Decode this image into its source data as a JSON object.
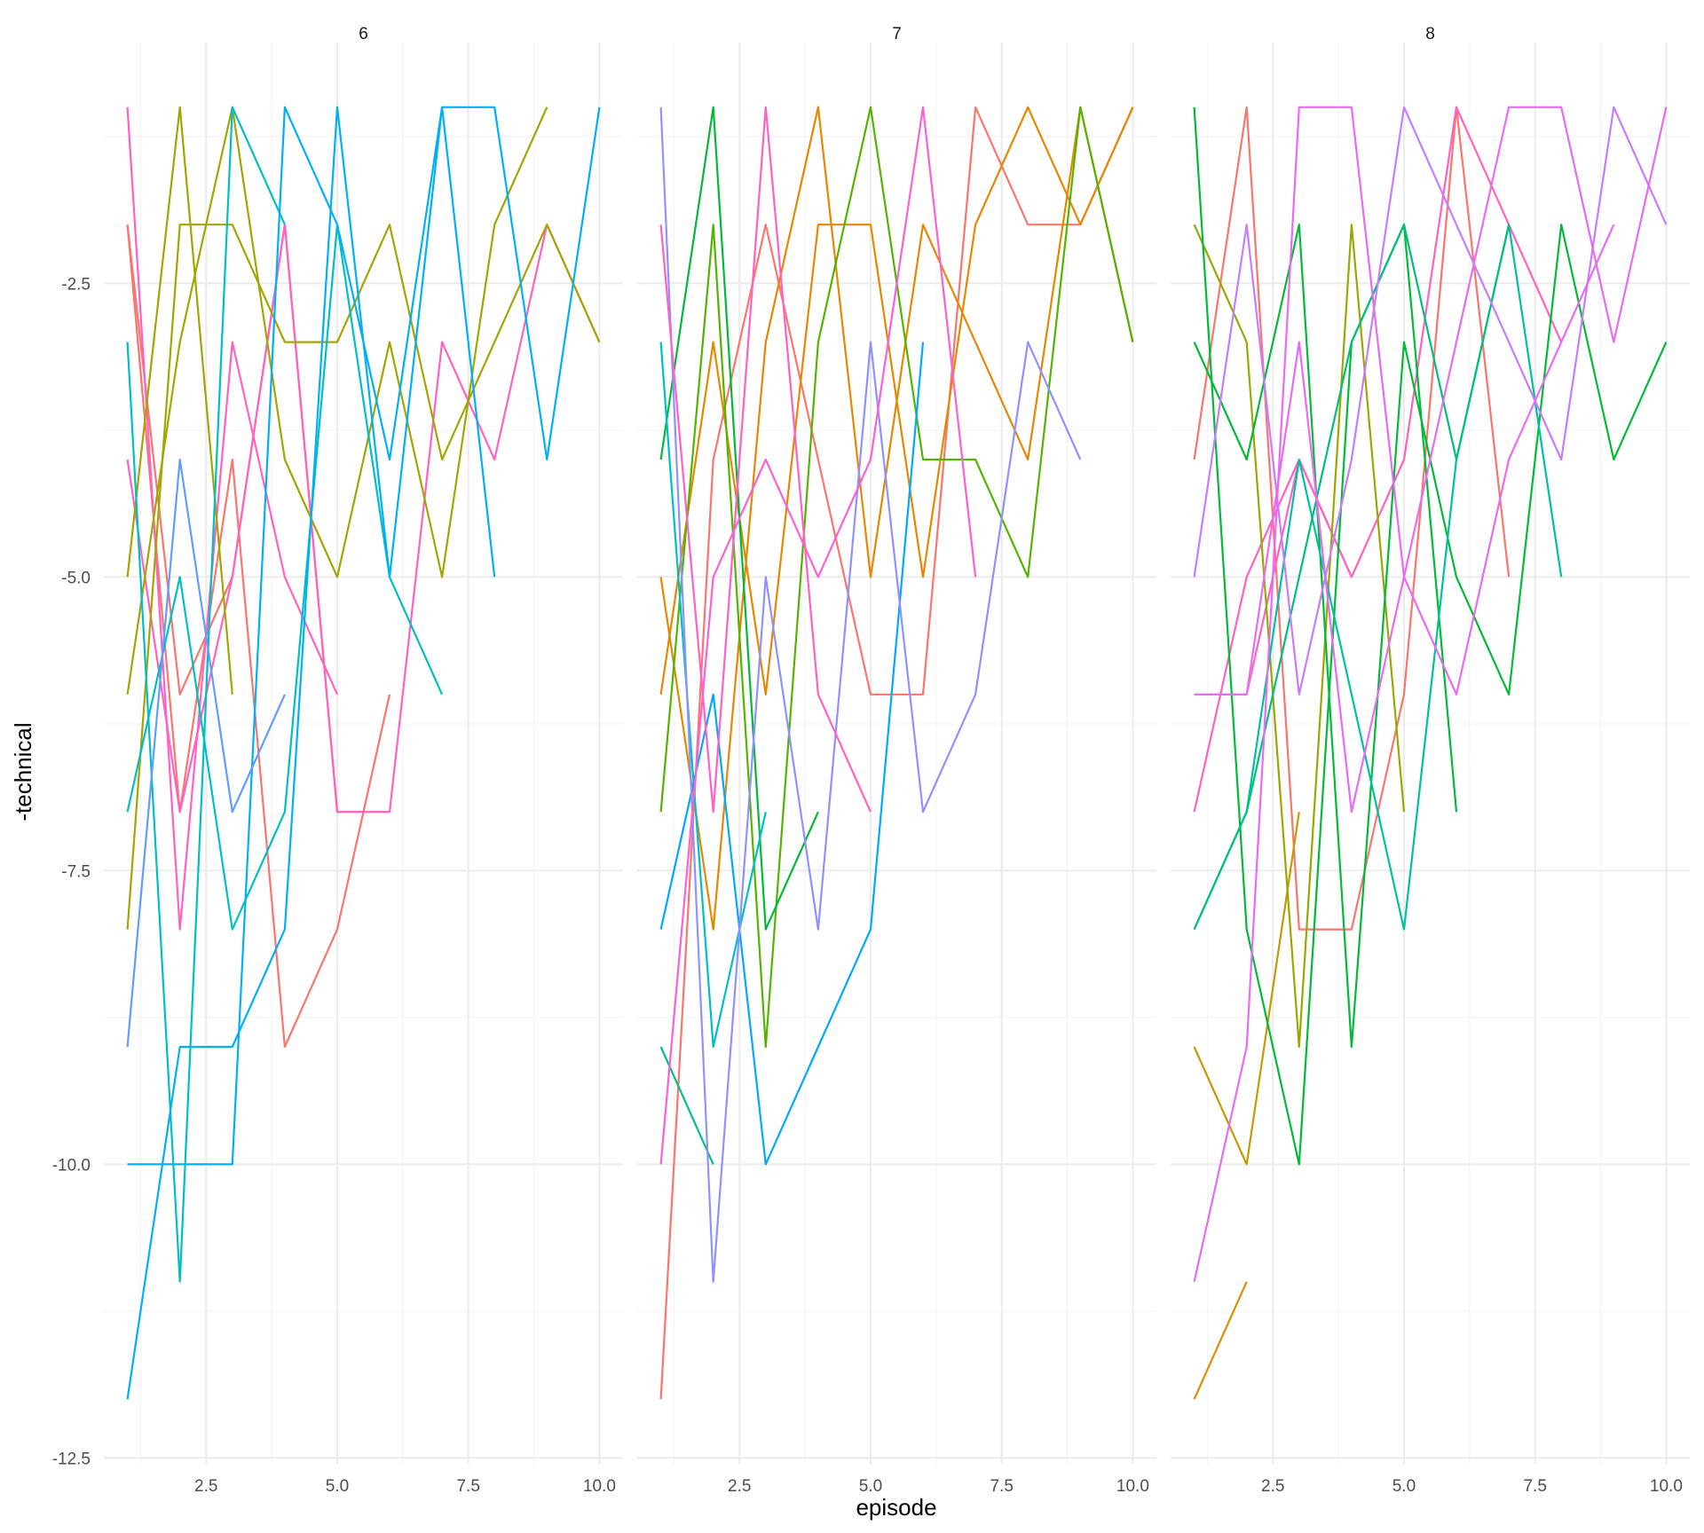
{
  "chart_data": {
    "type": "line",
    "xlabel": "episode",
    "ylabel": "-technical",
    "xlim": [
      1,
      10
    ],
    "ylim": [
      -12,
      -1
    ],
    "x_ticks": [
      2.5,
      5.0,
      7.5,
      10.0
    ],
    "x_tick_labels": [
      "2.5",
      "5.0",
      "7.5",
      "10.0"
    ],
    "y_ticks": [
      -2.5,
      -5.0,
      -7.5,
      -10.0,
      -12.5
    ],
    "y_tick_labels": [
      "-2.5",
      "-5.0",
      "-7.5",
      "-10.0",
      "-12.5"
    ],
    "grid": true,
    "legend": "none",
    "panels": [
      {
        "label": "6",
        "series": [
          {
            "color": "#F8766D",
            "x": [
              1,
              2,
              3,
              4,
              5,
              6
            ],
            "y": [
              -2,
              -7,
              -4,
              -9,
              -8,
              -6
            ]
          },
          {
            "color": "#F8766D",
            "x": [
              1,
              2,
              3,
              4,
              5,
              6
            ],
            "y": [
              -2,
              -6,
              -5,
              -2,
              -7,
              -7
            ]
          },
          {
            "color": "#FF61C3",
            "x": [
              1,
              2,
              3,
              4,
              5
            ],
            "y": [
              -1,
              -8,
              -3,
              -5,
              -6
            ]
          },
          {
            "color": "#FF61C3",
            "x": [
              1,
              2,
              3,
              4,
              5,
              6,
              7,
              8,
              9,
              10
            ],
            "y": [
              -4,
              -7,
              -5,
              -2,
              -7,
              -7,
              -3,
              -4,
              -2,
              -3
            ]
          },
          {
            "color": "#A3A500",
            "x": [
              1,
              2,
              3
            ],
            "y": [
              -5,
              -1,
              -6
            ]
          },
          {
            "color": "#A3A500",
            "x": [
              1,
              2,
              3,
              4,
              5,
              6,
              7,
              8,
              9,
              10
            ],
            "y": [
              -8,
              -2,
              -2,
              -3,
              -3,
              -2,
              -4,
              -3,
              -2,
              -3
            ]
          },
          {
            "color": "#A3A500",
            "x": [
              1,
              2,
              3,
              4,
              5,
              6,
              7,
              8,
              9
            ],
            "y": [
              -6,
              -3,
              -1,
              -4,
              -5,
              -3,
              -5,
              -2,
              -1
            ]
          },
          {
            "color": "#00BFC4",
            "x": [
              1,
              2,
              3,
              4
            ],
            "y": [
              -3,
              -11,
              -1,
              -2
            ]
          },
          {
            "color": "#00BFC4",
            "x": [
              1,
              2,
              3,
              4,
              5,
              6,
              7
            ],
            "y": [
              -7,
              -5,
              -8,
              -7,
              -2,
              -5,
              -6
            ]
          },
          {
            "color": "#00B0F6",
            "x": [
              1,
              2,
              3,
              4,
              5,
              6,
              7,
              8
            ],
            "y": [
              -12,
              -9,
              -9,
              -8,
              -1,
              -5,
              -1,
              -5
            ]
          },
          {
            "color": "#00B0F6",
            "x": [
              1,
              2,
              3,
              4,
              5,
              6,
              7,
              8,
              9,
              10
            ],
            "y": [
              -10,
              -10,
              -10,
              -1,
              -2,
              -4,
              -1,
              -1,
              -4,
              -1
            ]
          },
          {
            "color": "#619CFF",
            "x": [
              1,
              2,
              3,
              4
            ],
            "y": [
              -9,
              -4,
              -7,
              -6
            ]
          }
        ]
      },
      {
        "label": "7",
        "series": [
          {
            "color": "#F8766D",
            "x": [
              1,
              2,
              3,
              4,
              5,
              6,
              7,
              8,
              9,
              10
            ],
            "y": [
              -12,
              -4,
              -2,
              -4,
              -6,
              -6,
              -1,
              -2,
              -2,
              -1
            ]
          },
          {
            "color": "#E58700",
            "x": [
              1,
              2,
              3,
              4,
              5,
              6,
              7,
              8,
              9,
              10
            ],
            "y": [
              -5,
              -8,
              -3,
              -1,
              -5,
              -2,
              -3,
              -4,
              -1,
              -3
            ]
          },
          {
            "color": "#E58700",
            "x": [
              1,
              2,
              3,
              4,
              5,
              6,
              7,
              8,
              9,
              10
            ],
            "y": [
              -6,
              -3,
              -6,
              -2,
              -2,
              -5,
              -2,
              -1,
              -2,
              -1
            ]
          },
          {
            "color": "#53B400",
            "x": [
              1,
              2,
              3,
              4,
              5,
              6,
              7,
              8,
              9,
              10
            ],
            "y": [
              -7,
              -2,
              -9,
              -3,
              -1,
              -4,
              -4,
              -5,
              -1,
              -3
            ]
          },
          {
            "color": "#00B938",
            "x": [
              1,
              2,
              3,
              4
            ],
            "y": [
              -4,
              -1,
              -8,
              -7
            ]
          },
          {
            "color": "#00C08B",
            "x": [
              1,
              2
            ],
            "y": [
              -9,
              -10
            ]
          },
          {
            "color": "#00BFC4",
            "x": [
              1,
              2,
              3
            ],
            "y": [
              -3,
              -9,
              -7
            ]
          },
          {
            "color": "#00A9FF",
            "x": [
              1,
              2,
              3,
              4,
              5,
              6
            ],
            "y": [
              -8,
              -6,
              -10,
              -9,
              -8,
              -3
            ]
          },
          {
            "color": "#8F91FF",
            "x": [
              1,
              2,
              3,
              4,
              5,
              6,
              7,
              8,
              9
            ],
            "y": [
              -1,
              -11,
              -5,
              -8,
              -3,
              -7,
              -6,
              -3,
              -4
            ]
          },
          {
            "color": "#FF61C3",
            "x": [
              1,
              2,
              3,
              4,
              5
            ],
            "y": [
              -2,
              -7,
              -1,
              -6,
              -7
            ]
          },
          {
            "color": "#FB61D7",
            "x": [
              1,
              2,
              3,
              4,
              5,
              6,
              7
            ],
            "y": [
              -10,
              -5,
              -4,
              -5,
              -4,
              -1,
              -5
            ]
          }
        ]
      },
      {
        "label": "8",
        "series": [
          {
            "color": "#F8766D",
            "x": [
              1,
              2,
              3,
              4,
              5,
              6,
              7
            ],
            "y": [
              -4,
              -1,
              -8,
              -8,
              -6,
              -1,
              -5
            ]
          },
          {
            "color": "#FF61C3",
            "x": [
              1,
              2,
              3,
              4
            ],
            "y": [
              -6,
              -6,
              -4,
              -5
            ]
          },
          {
            "color": "#FF61C3",
            "x": [
              1,
              2,
              3,
              4,
              5,
              6,
              7,
              8
            ],
            "y": [
              -7,
              -5,
              -4,
              -5,
              -4,
              -1,
              -2,
              -3
            ]
          },
          {
            "color": "#C49A00",
            "x": [
              1,
              2,
              3
            ],
            "y": [
              -9,
              -10,
              -7
            ]
          },
          {
            "color": "#DB8E00",
            "x": [
              1,
              2
            ],
            "y": [
              -12,
              -11
            ]
          },
          {
            "color": "#99A800",
            "x": [
              1,
              2,
              3,
              4,
              5
            ],
            "y": [
              -2,
              -3,
              -9,
              -2,
              -7
            ]
          },
          {
            "color": "#00BA38",
            "x": [
              1,
              2,
              3,
              4,
              5,
              6
            ],
            "y": [
              -1,
              -8,
              -10,
              -3,
              -2,
              -7
            ]
          },
          {
            "color": "#00BA38",
            "x": [
              1,
              2,
              3,
              4,
              5,
              6,
              7,
              8,
              9,
              10
            ],
            "y": [
              -3,
              -4,
              -2,
              -9,
              -3,
              -5,
              -6,
              -2,
              -4,
              -3
            ]
          },
          {
            "color": "#00C19F",
            "x": [
              1,
              2,
              3,
              4,
              5,
              6,
              7,
              8
            ],
            "y": [
              -8,
              -7,
              -4,
              -6,
              -8,
              -4,
              -2,
              -5
            ]
          },
          {
            "color": "#00BF7D",
            "x": [
              1,
              2,
              3,
              4,
              5,
              6,
              7
            ],
            "y": [
              -8,
              -7,
              -5,
              -3,
              -2,
              -4,
              -2
            ]
          },
          {
            "color": "#C77CFF",
            "x": [
              1,
              2,
              3,
              4,
              5,
              6,
              7,
              8,
              9,
              10
            ],
            "y": [
              -5,
              -2,
              -6,
              -4,
              -1,
              -2,
              -3,
              -4,
              -1,
              -2
            ]
          },
          {
            "color": "#E76BF3",
            "x": [
              1,
              2,
              3,
              4,
              5,
              6,
              7,
              8,
              9,
              10
            ],
            "y": [
              -11,
              -9,
              -1,
              -1,
              -5,
              -3,
              -1,
              -1,
              -3,
              -1
            ]
          },
          {
            "color": "#E76BF3",
            "x": [
              1,
              2,
              3,
              4,
              5,
              6,
              7,
              8,
              9
            ],
            "y": [
              -6,
              -6,
              -3,
              -7,
              -5,
              -6,
              -4,
              -3,
              -2
            ]
          }
        ]
      }
    ]
  }
}
